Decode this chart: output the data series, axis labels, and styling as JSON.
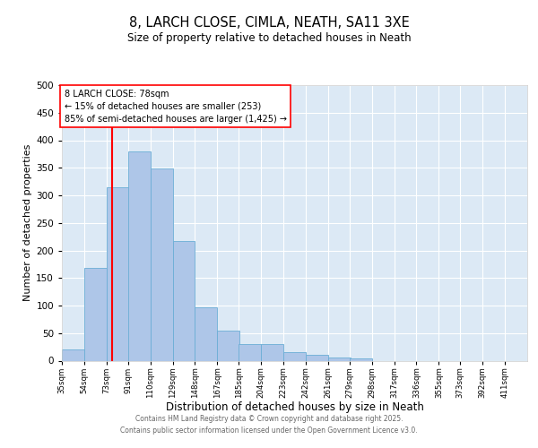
{
  "title": "8, LARCH CLOSE, CIMLA, NEATH, SA11 3XE",
  "subtitle": "Size of property relative to detached houses in Neath",
  "xlabel": "Distribution of detached houses by size in Neath",
  "ylabel": "Number of detached properties",
  "bin_labels": [
    "35sqm",
    "54sqm",
    "73sqm",
    "91sqm",
    "110sqm",
    "129sqm",
    "148sqm",
    "167sqm",
    "185sqm",
    "204sqm",
    "223sqm",
    "242sqm",
    "261sqm",
    "279sqm",
    "298sqm",
    "317sqm",
    "336sqm",
    "355sqm",
    "373sqm",
    "392sqm",
    "411sqm"
  ],
  "bin_edges": [
    35,
    54,
    73,
    91,
    110,
    129,
    148,
    167,
    185,
    204,
    223,
    242,
    261,
    279,
    298,
    317,
    336,
    355,
    373,
    392,
    411
  ],
  "bar_heights": [
    20,
    168,
    315,
    379,
    348,
    217,
    96,
    54,
    30,
    30,
    15,
    10,
    6,
    4,
    0,
    0,
    0,
    0,
    0,
    0
  ],
  "bar_color": "#aec6e8",
  "bar_edge_color": "#6baed6",
  "vline_x": 78,
  "vline_color": "red",
  "annotation_line1": "8 LARCH CLOSE: 78sqm",
  "annotation_line2": "← 15% of detached houses are smaller (253)",
  "annotation_line3": "85% of semi-detached houses are larger (1,425) →",
  "ylim": [
    0,
    500
  ],
  "yticks": [
    0,
    50,
    100,
    150,
    200,
    250,
    300,
    350,
    400,
    450,
    500
  ],
  "plot_bg_color": "#dce9f5",
  "footer_line1": "Contains HM Land Registry data © Crown copyright and database right 2025.",
  "footer_line2": "Contains public sector information licensed under the Open Government Licence v3.0."
}
